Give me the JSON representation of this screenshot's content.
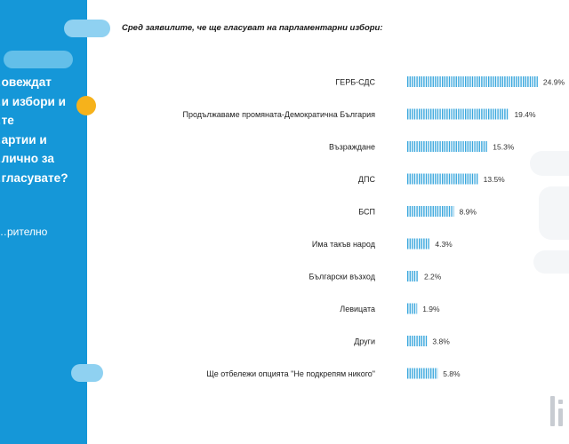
{
  "left_panel": {
    "question_lines": [
      "…овеждат",
      "…и избори и",
      "…те",
      "…артии и",
      "…лично за",
      "…гласувате?"
    ],
    "note": "…рително"
  },
  "colors": {
    "panel_blue": "#1597d8",
    "accent_orange": "#f6b21b",
    "bar_blue": "#3aa7dd"
  },
  "chart_data": {
    "type": "bar",
    "orientation": "horizontal",
    "title": "Сред заявилите, че ще гласуват на парламентарни избори:",
    "categories": [
      "ГЕРБ-СДС",
      "Продължаваме промяната-Демократична България",
      "Възраждане",
      "ДПС",
      "БСП",
      "Има такъв народ",
      "Български възход",
      "Левицата",
      "Други",
      "Ще отбележи опцията  \"Не подкрепям никого\""
    ],
    "values": [
      24.9,
      19.4,
      15.3,
      13.5,
      8.9,
      4.3,
      2.2,
      1.9,
      3.8,
      5.8
    ],
    "value_labels": [
      "24.9%",
      "19.4%",
      "15.3%",
      "13.5%",
      "8.9%",
      "4.3%",
      "2.2%",
      "1.9%",
      "3.8%",
      "5.8%"
    ],
    "grid": false,
    "legend": false
  },
  "logo_icon": "brand-logo-icon"
}
